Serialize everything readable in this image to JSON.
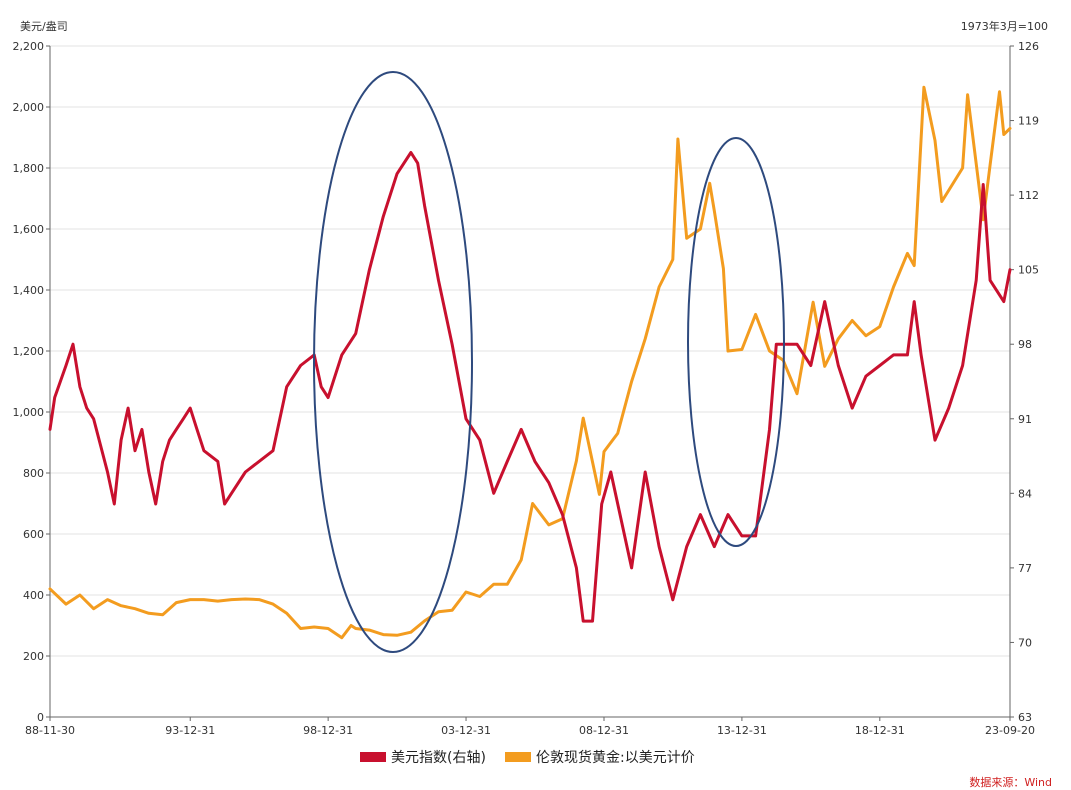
{
  "chart_data": {
    "type": "line",
    "left_axis": {
      "unit_label": "美元/盎司",
      "range": [
        0,
        2200
      ],
      "ticks": [
        "0",
        "200",
        "400",
        "600",
        "800",
        "1,000",
        "1,200",
        "1,400",
        "1,600",
        "1,800",
        "2,000",
        "2,200"
      ]
    },
    "right_axis": {
      "unit_label": "1973年3月=100",
      "range": [
        63,
        126
      ],
      "ticks": [
        "63",
        "70",
        "77",
        "84",
        "91",
        "98",
        "105",
        "112",
        "119",
        "126"
      ]
    },
    "x_axis": {
      "range": [
        "1988-11-30",
        "2023-09-20"
      ],
      "ticks": [
        "88-11-30",
        "93-12-31",
        "98-12-31",
        "03-12-31",
        "08-12-31",
        "13-12-31",
        "18-12-31",
        "23-09-20"
      ]
    },
    "grid": true,
    "legend_position": "bottom",
    "series": [
      {
        "name": "美元指数(右轴)",
        "axis": "right",
        "color": "#c8102e",
        "points": [
          [
            "1988-11-30",
            90
          ],
          [
            "1989-01-31",
            93
          ],
          [
            "1989-06-30",
            96
          ],
          [
            "1989-09-30",
            98
          ],
          [
            "1989-12-31",
            94
          ],
          [
            "1990-03-31",
            92
          ],
          [
            "1990-06-30",
            91
          ],
          [
            "1990-12-31",
            86
          ],
          [
            "1991-03-31",
            83
          ],
          [
            "1991-06-30",
            89
          ],
          [
            "1991-09-30",
            92
          ],
          [
            "1991-12-31",
            88
          ],
          [
            "1992-03-31",
            90
          ],
          [
            "1992-06-30",
            86
          ],
          [
            "1992-09-30",
            83
          ],
          [
            "1992-12-31",
            87
          ],
          [
            "1993-03-31",
            89
          ],
          [
            "1993-06-30",
            90
          ],
          [
            "1993-09-30",
            91
          ],
          [
            "1993-12-31",
            92
          ],
          [
            "1994-03-31",
            90
          ],
          [
            "1994-06-30",
            88
          ],
          [
            "1994-12-31",
            87
          ],
          [
            "1995-03-31",
            83
          ],
          [
            "1995-06-30",
            84
          ],
          [
            "1995-12-31",
            86
          ],
          [
            "1996-06-30",
            87
          ],
          [
            "1996-12-31",
            88
          ],
          [
            "1997-06-30",
            94
          ],
          [
            "1997-12-31",
            96
          ],
          [
            "1998-06-30",
            97
          ],
          [
            "1998-09-30",
            94
          ],
          [
            "1998-12-31",
            93
          ],
          [
            "1999-06-30",
            97
          ],
          [
            "1999-12-31",
            99
          ],
          [
            "2000-06-30",
            105
          ],
          [
            "2000-12-31",
            110
          ],
          [
            "2001-06-30",
            114
          ],
          [
            "2001-12-31",
            116
          ],
          [
            "2002-03-31",
            115
          ],
          [
            "2002-06-30",
            111
          ],
          [
            "2002-12-31",
            104
          ],
          [
            "2003-06-30",
            98
          ],
          [
            "2003-12-31",
            91
          ],
          [
            "2004-06-30",
            89
          ],
          [
            "2004-12-31",
            84
          ],
          [
            "2005-06-30",
            87
          ],
          [
            "2005-12-31",
            90
          ],
          [
            "2006-06-30",
            87
          ],
          [
            "2006-12-31",
            85
          ],
          [
            "2007-06-30",
            82
          ],
          [
            "2007-12-31",
            77
          ],
          [
            "2008-03-31",
            72
          ],
          [
            "2008-07-31",
            72
          ],
          [
            "2008-11-30",
            83
          ],
          [
            "2009-03-31",
            86
          ],
          [
            "2009-12-31",
            77
          ],
          [
            "2010-06-30",
            86
          ],
          [
            "2010-12-31",
            79
          ],
          [
            "2011-06-30",
            74
          ],
          [
            "2011-12-31",
            79
          ],
          [
            "2012-06-30",
            82
          ],
          [
            "2012-12-31",
            79
          ],
          [
            "2013-06-30",
            82
          ],
          [
            "2013-12-31",
            80
          ],
          [
            "2014-06-30",
            80
          ],
          [
            "2014-12-31",
            90
          ],
          [
            "2015-03-31",
            98
          ],
          [
            "2015-12-31",
            98
          ],
          [
            "2016-06-30",
            96
          ],
          [
            "2016-12-31",
            102
          ],
          [
            "2017-06-30",
            96
          ],
          [
            "2017-12-31",
            92
          ],
          [
            "2018-06-30",
            95
          ],
          [
            "2018-12-31",
            96
          ],
          [
            "2019-06-30",
            97
          ],
          [
            "2019-12-31",
            97
          ],
          [
            "2020-03-31",
            102
          ],
          [
            "2020-06-30",
            97
          ],
          [
            "2020-12-31",
            89
          ],
          [
            "2021-06-30",
            92
          ],
          [
            "2021-12-31",
            96
          ],
          [
            "2022-06-30",
            104
          ],
          [
            "2022-09-30",
            113
          ],
          [
            "2022-12-31",
            104
          ],
          [
            "2023-06-30",
            102
          ],
          [
            "2023-09-20",
            105
          ]
        ]
      },
      {
        "name": "伦敦现货黄金:以美元计价",
        "axis": "left",
        "color": "#f39c1f",
        "points": [
          [
            "1988-11-30",
            420
          ],
          [
            "1989-06-30",
            370
          ],
          [
            "1989-12-31",
            400
          ],
          [
            "1990-06-30",
            355
          ],
          [
            "1990-12-31",
            385
          ],
          [
            "1991-06-30",
            365
          ],
          [
            "1991-12-31",
            355
          ],
          [
            "1992-06-30",
            340
          ],
          [
            "1992-12-31",
            335
          ],
          [
            "1993-06-30",
            375
          ],
          [
            "1993-12-31",
            385
          ],
          [
            "1994-06-30",
            385
          ],
          [
            "1994-12-31",
            380
          ],
          [
            "1995-06-30",
            385
          ],
          [
            "1995-12-31",
            387
          ],
          [
            "1996-06-30",
            385
          ],
          [
            "1996-12-31",
            370
          ],
          [
            "1997-06-30",
            340
          ],
          [
            "1997-12-31",
            290
          ],
          [
            "1998-06-30",
            295
          ],
          [
            "1998-12-31",
            290
          ],
          [
            "1999-06-30",
            260
          ],
          [
            "1999-10-31",
            300
          ],
          [
            "1999-12-31",
            290
          ],
          [
            "2000-06-30",
            285
          ],
          [
            "2000-12-31",
            270
          ],
          [
            "2001-06-30",
            268
          ],
          [
            "2001-12-31",
            278
          ],
          [
            "2002-06-30",
            315
          ],
          [
            "2002-12-31",
            345
          ],
          [
            "2003-06-30",
            350
          ],
          [
            "2003-12-31",
            410
          ],
          [
            "2004-06-30",
            395
          ],
          [
            "2004-12-31",
            435
          ],
          [
            "2005-06-30",
            435
          ],
          [
            "2005-12-31",
            515
          ],
          [
            "2006-05-31",
            700
          ],
          [
            "2006-12-31",
            630
          ],
          [
            "2007-06-30",
            650
          ],
          [
            "2007-12-31",
            840
          ],
          [
            "2008-03-31",
            980
          ],
          [
            "2008-10-31",
            730
          ],
          [
            "2008-12-31",
            870
          ],
          [
            "2009-06-30",
            930
          ],
          [
            "2009-12-31",
            1100
          ],
          [
            "2010-06-30",
            1240
          ],
          [
            "2010-12-31",
            1410
          ],
          [
            "2011-06-30",
            1500
          ],
          [
            "2011-09-05",
            1895
          ],
          [
            "2011-12-31",
            1570
          ],
          [
            "2012-06-30",
            1600
          ],
          [
            "2012-10-31",
            1750
          ],
          [
            "2012-12-31",
            1660
          ],
          [
            "2013-04-30",
            1470
          ],
          [
            "2013-06-30",
            1200
          ],
          [
            "2013-12-31",
            1205
          ],
          [
            "2014-06-30",
            1320
          ],
          [
            "2014-12-31",
            1200
          ],
          [
            "2015-06-30",
            1170
          ],
          [
            "2015-12-31",
            1060
          ],
          [
            "2016-07-31",
            1360
          ],
          [
            "2016-12-31",
            1150
          ],
          [
            "2017-06-30",
            1240
          ],
          [
            "2017-12-31",
            1300
          ],
          [
            "2018-06-30",
            1250
          ],
          [
            "2018-12-31",
            1280
          ],
          [
            "2019-06-30",
            1410
          ],
          [
            "2019-12-31",
            1520
          ],
          [
            "2020-03-31",
            1480
          ],
          [
            "2020-08-06",
            2065
          ],
          [
            "2020-12-31",
            1890
          ],
          [
            "2021-03-31",
            1690
          ],
          [
            "2021-12-31",
            1800
          ],
          [
            "2022-03-08",
            2040
          ],
          [
            "2022-09-30",
            1630
          ],
          [
            "2022-12-31",
            1810
          ],
          [
            "2023-05-04",
            2050
          ],
          [
            "2023-06-30",
            1910
          ],
          [
            "2023-09-20",
            1930
          ]
        ]
      }
    ],
    "source_note": "数据来源：Wind"
  }
}
